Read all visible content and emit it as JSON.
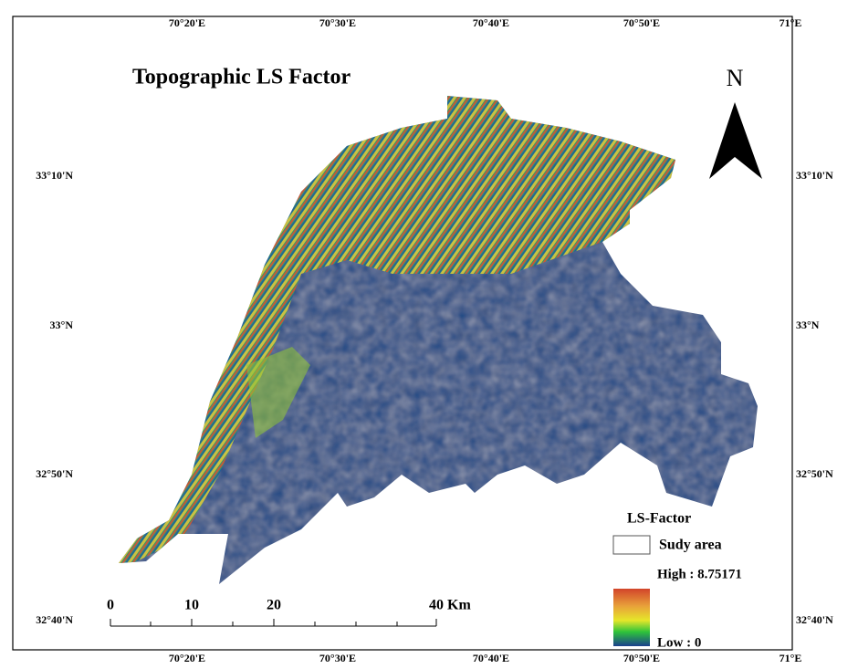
{
  "map": {
    "title": "Topographic LS Factor",
    "north": "N",
    "lon_labels_top": [
      "70°20'E",
      "70°30'E",
      "70°40'E",
      "70°50'E",
      "71°E"
    ],
    "lon_labels_bottom": [
      "70°20'E",
      "70°30'E",
      "70°40'E",
      "70°50'E",
      "71°E"
    ],
    "lat_labels_left": [
      "33°10'N",
      "33°N",
      "32°50'N",
      "32°40'N"
    ],
    "lat_labels_right": [
      "33°10'N",
      "33°N",
      "32°50'N",
      "32°40'N"
    ],
    "legend": {
      "title": "LS-Factor",
      "study_area": "Sudy area",
      "high": "High : 8.75171",
      "low": "Low : 0"
    },
    "scale_bar": [
      "0",
      "10",
      "20",
      "40 Km"
    ]
  }
}
